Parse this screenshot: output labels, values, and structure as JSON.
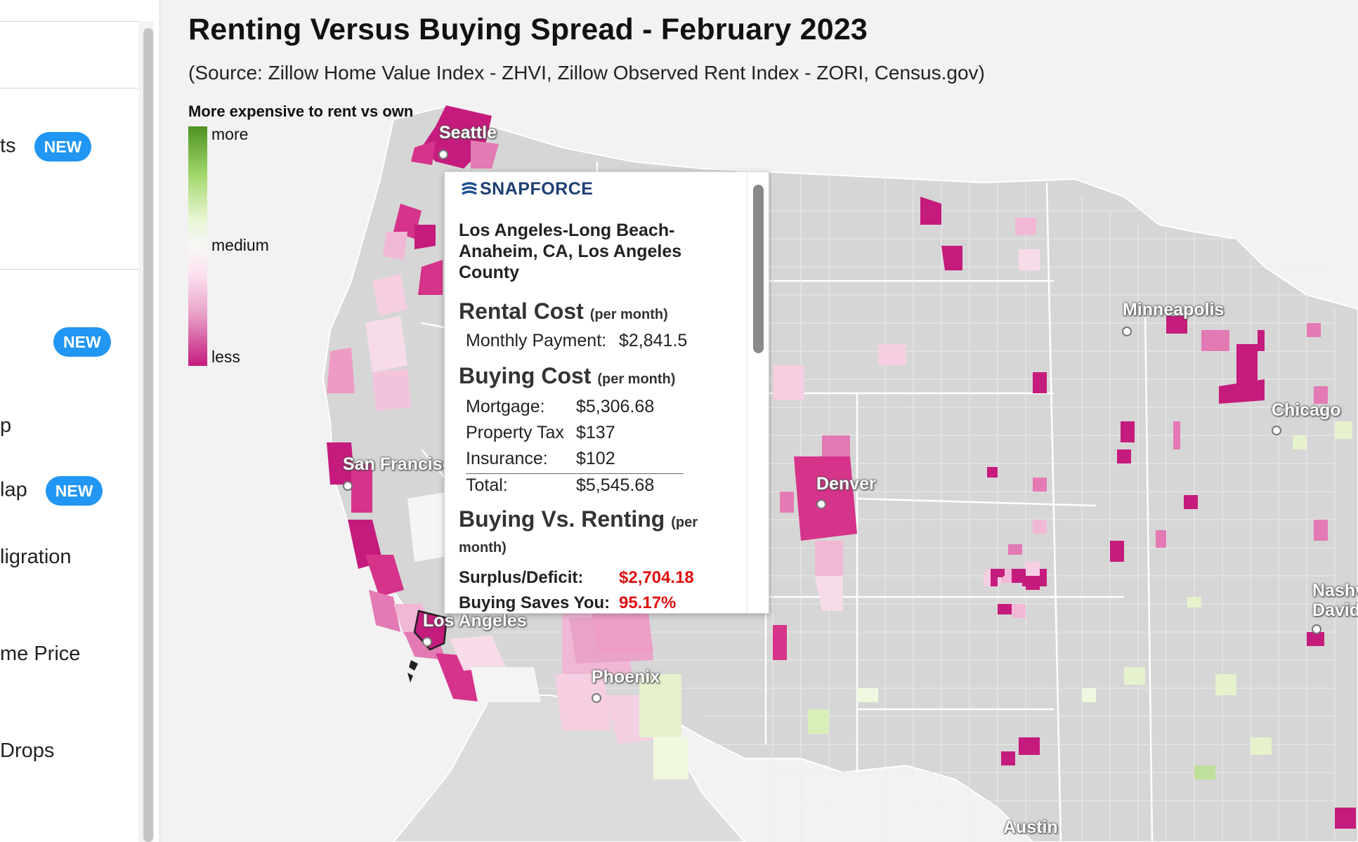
{
  "sidebar": {
    "items": [
      {
        "label": "ts",
        "badge": "NEW"
      },
      {
        "label": "",
        "badge": "NEW"
      },
      {
        "label": "p",
        "badge": ""
      },
      {
        "label": "lap",
        "badge": "NEW"
      },
      {
        "label": "ligration",
        "badge": ""
      },
      {
        "label": "me Price",
        "badge": ""
      },
      {
        "label": "Drops",
        "badge": ""
      }
    ]
  },
  "header": {
    "title": "Renting Versus Buying Spread - February 2023",
    "source": "(Source: Zillow Home Value Index - ZHVI, Zillow Observed Rent Index - ZORI, Census.gov)"
  },
  "legend": {
    "title": "More expensive to rent vs own",
    "top": "more",
    "middle": "medium",
    "bottom": "less"
  },
  "tooltip": {
    "logo": "SNAPFORCE",
    "region": [
      "Los Angeles-Long Beach-",
      "Anaheim, CA, Los Angeles",
      "County"
    ],
    "rental_heading": "Rental Cost",
    "rental_unit": "(per month)",
    "monthly_payment_label": "Monthly Payment:",
    "monthly_payment_value": "$2,841.5",
    "buying_heading": "Buying Cost",
    "buying_unit": "(per month)",
    "mortgage_label": "Mortgage:",
    "mortgage_value": "$5,306.68",
    "tax_label": "Property Tax",
    "tax_value": "$137",
    "insurance_label": "Insurance:",
    "insurance_value": "$102",
    "total_label": "Total:",
    "total_value": "$5,545.68",
    "vs_heading": "Buying Vs. Renting",
    "vs_unit_1": "(per",
    "vs_unit_2": "month)",
    "surplus_label": "Surplus/Deficit:",
    "surplus_value": "$2,704.18",
    "saves_label": "Buying Saves You:",
    "saves_value": "95.17%"
  },
  "cities": {
    "seattle": "Seattle",
    "san_francisco": "San Francisco",
    "los_angeles": "Los Angeles",
    "phoenix": "Phoenix",
    "denver": "Denver",
    "minneapolis": "Minneapolis",
    "chicago": "Chicago",
    "nashville_1": "Nashv",
    "nashville_2": "David",
    "austin": "Austin"
  },
  "colors": {
    "less": "#c51b7d",
    "medium": "#f7f7f7",
    "more": "#4d9221",
    "badge": "#2196f3",
    "deficit": "#e01010"
  }
}
